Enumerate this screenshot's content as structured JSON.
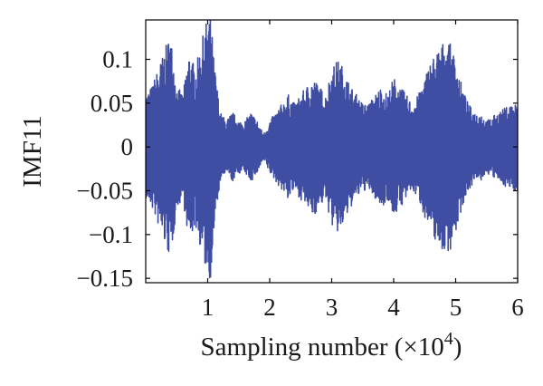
{
  "chart_data": {
    "type": "line",
    "title": "",
    "xlabel": "Sampling number (×10",
    "xlabel_exponent": "4",
    "xlabel_suffix": ")",
    "ylabel": "IMF11",
    "xlim": [
      0,
      6
    ],
    "ylim": [
      -0.155,
      0.145
    ],
    "xticks": [
      1,
      2,
      3,
      4,
      5,
      6
    ],
    "xtick_labels": [
      "1",
      "2",
      "3",
      "4",
      "5",
      "6"
    ],
    "yticks": [
      0.1,
      0.05,
      0,
      -0.05,
      -0.1,
      -0.15
    ],
    "ytick_labels": [
      "0.1",
      "0.05",
      "0",
      "−0.05",
      "−0.1",
      "−0.15"
    ],
    "grid": false,
    "line_color": "#3f4ea3",
    "series": [
      {
        "envelope": {
          "x": [
            0.0,
            0.1,
            0.2,
            0.3,
            0.4,
            0.5,
            0.6,
            0.7,
            0.8,
            0.9,
            1.0,
            1.05,
            1.1,
            1.2,
            1.3,
            1.4,
            1.5,
            1.6,
            1.7,
            1.8,
            1.9,
            2.0,
            2.1,
            2.2,
            2.3,
            2.4,
            2.5,
            2.6,
            2.7,
            2.8,
            2.9,
            3.0,
            3.1,
            3.2,
            3.3,
            3.4,
            3.5,
            3.6,
            3.7,
            3.8,
            3.9,
            4.0,
            4.1,
            4.2,
            4.3,
            4.4,
            4.5,
            4.6,
            4.7,
            4.8,
            4.9,
            5.0,
            5.1,
            5.2,
            5.3,
            5.4,
            5.5,
            5.6,
            5.7,
            5.8,
            5.9,
            6.0
          ],
          "amplitude": [
            0.06,
            0.07,
            0.09,
            0.11,
            0.13,
            0.07,
            0.06,
            0.11,
            0.09,
            0.12,
            0.15,
            0.15,
            0.1,
            0.04,
            0.03,
            0.04,
            0.03,
            0.03,
            0.04,
            0.03,
            0.015,
            0.03,
            0.04,
            0.05,
            0.06,
            0.05,
            0.06,
            0.07,
            0.08,
            0.07,
            0.06,
            0.09,
            0.1,
            0.09,
            0.07,
            0.06,
            0.05,
            0.05,
            0.06,
            0.07,
            0.06,
            0.08,
            0.07,
            0.06,
            0.05,
            0.06,
            0.08,
            0.1,
            0.11,
            0.12,
            0.12,
            0.1,
            0.07,
            0.05,
            0.04,
            0.04,
            0.03,
            0.035,
            0.04,
            0.045,
            0.05,
            0.05
          ]
        }
      }
    ]
  }
}
